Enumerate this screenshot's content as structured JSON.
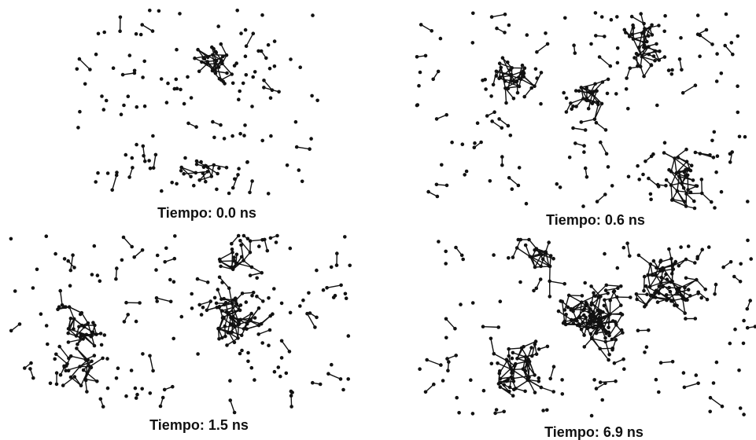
{
  "panels": [
    {
      "caption": "Tiempo: 0.0 ns"
    },
    {
      "caption": "Tiempo: 0.6 ns"
    },
    {
      "caption": "Tiempo: 1.5 ns"
    },
    {
      "caption": "Tiempo: 6.9 ns"
    }
  ]
}
